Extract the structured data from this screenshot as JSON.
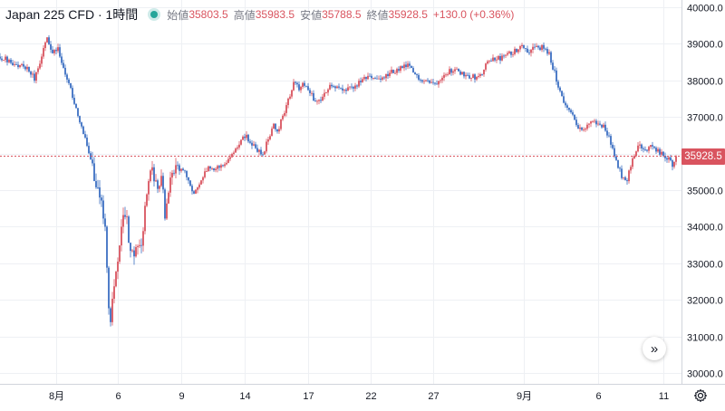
{
  "legend": {
    "title": "Japan 225 CFD · 1時間",
    "open_label": "始値",
    "open_value": "35803.5",
    "high_label": "高値",
    "high_value": "35983.5",
    "low_label": "安値",
    "low_value": "35788.5",
    "close_label": "終値",
    "close_value": "35928.5",
    "change": "+130.0 (+0.36%)"
  },
  "last_price_label": "35928.5",
  "colors": {
    "up": "#d9545f",
    "down": "#3c6fc2",
    "last_line": "#d9545f",
    "grid": "#eef0f4",
    "axis_text": "#131722"
  },
  "icons": {
    "scroll": "double-chevron-right-icon",
    "settings": "gear-icon"
  },
  "chart_data": {
    "type": "candlestick",
    "series_name": "Japan 225 CFD",
    "interval": "1時間",
    "y_ticks": [
      30000,
      31000,
      32000,
      33000,
      34000,
      35000,
      36000,
      37000,
      38000,
      39000,
      40000
    ],
    "y_tick_labels": [
      "30000.0",
      "31000.0",
      "32000.0",
      "33000.0",
      "34000.0",
      "35000.0",
      "36000.0",
      "37000.0",
      "38000.0",
      "39000.0",
      "40000.0"
    ],
    "ylim": [
      29700,
      40200
    ],
    "x_ticks": [
      {
        "label": "8月",
        "index": 62
      },
      {
        "label": "6",
        "index": 130
      },
      {
        "label": "9",
        "index": 200
      },
      {
        "label": "14",
        "index": 270
      },
      {
        "label": "17",
        "index": 340
      },
      {
        "label": "22",
        "index": 409
      },
      {
        "label": "27",
        "index": 478
      },
      {
        "label": "9月",
        "index": 578
      },
      {
        "label": "6",
        "index": 660
      },
      {
        "label": "11",
        "index": 732
      }
    ],
    "x_range": [
      0,
      752
    ],
    "candle_spacing_index": 2,
    "last_price": 35928.5,
    "path": [
      [
        0,
        38650
      ],
      [
        30,
        38300
      ],
      [
        38,
        38050
      ],
      [
        45,
        38600
      ],
      [
        52,
        39150
      ],
      [
        58,
        38700
      ],
      [
        64,
        38900
      ],
      [
        72,
        38150
      ],
      [
        80,
        37600
      ],
      [
        88,
        36850
      ],
      [
        95,
        36400
      ],
      [
        100,
        35800
      ],
      [
        106,
        35200
      ],
      [
        112,
        34600
      ],
      [
        116,
        33900
      ],
      [
        119,
        32500
      ],
      [
        121,
        31000
      ],
      [
        123,
        31700
      ],
      [
        127,
        32600
      ],
      [
        131,
        33300
      ],
      [
        135,
        34400
      ],
      [
        139,
        34300
      ],
      [
        143,
        33500
      ],
      [
        147,
        33100
      ],
      [
        151,
        33400
      ],
      [
        155,
        33300
      ],
      [
        159,
        34300
      ],
      [
        163,
        35200
      ],
      [
        166,
        35600
      ],
      [
        170,
        35300
      ],
      [
        174,
        34900
      ],
      [
        178,
        35400
      ],
      [
        182,
        34400
      ],
      [
        186,
        35000
      ],
      [
        190,
        35400
      ],
      [
        194,
        35700
      ],
      [
        200,
        35600
      ],
      [
        206,
        35400
      ],
      [
        212,
        34900
      ],
      [
        220,
        35200
      ],
      [
        230,
        35600
      ],
      [
        240,
        35600
      ],
      [
        250,
        35700
      ],
      [
        260,
        36100
      ],
      [
        270,
        36500
      ],
      [
        280,
        36200
      ],
      [
        290,
        36000
      ],
      [
        296,
        36400
      ],
      [
        302,
        36800
      ],
      [
        306,
        36600
      ],
      [
        312,
        37000
      ],
      [
        318,
        37500
      ],
      [
        324,
        37900
      ],
      [
        330,
        37800
      ],
      [
        336,
        37900
      ],
      [
        342,
        37700
      ],
      [
        348,
        37400
      ],
      [
        356,
        37500
      ],
      [
        364,
        37900
      ],
      [
        372,
        37800
      ],
      [
        380,
        37700
      ],
      [
        390,
        37800
      ],
      [
        400,
        38000
      ],
      [
        410,
        38100
      ],
      [
        420,
        38000
      ],
      [
        430,
        38200
      ],
      [
        440,
        38300
      ],
      [
        450,
        38400
      ],
      [
        460,
        38100
      ],
      [
        470,
        38000
      ],
      [
        480,
        37900
      ],
      [
        490,
        38200
      ],
      [
        500,
        38300
      ],
      [
        510,
        38200
      ],
      [
        520,
        38100
      ],
      [
        530,
        38100
      ],
      [
        536,
        38400
      ],
      [
        544,
        38600
      ],
      [
        552,
        38600
      ],
      [
        560,
        38700
      ],
      [
        568,
        38800
      ],
      [
        576,
        39000
      ],
      [
        582,
        38800
      ],
      [
        590,
        38900
      ],
      [
        598,
        38900
      ],
      [
        606,
        38700
      ],
      [
        612,
        38200
      ],
      [
        618,
        37700
      ],
      [
        624,
        37300
      ],
      [
        630,
        37100
      ],
      [
        636,
        36800
      ],
      [
        644,
        36600
      ],
      [
        652,
        36900
      ],
      [
        660,
        36800
      ],
      [
        668,
        36700
      ],
      [
        674,
        36300
      ],
      [
        680,
        35800
      ],
      [
        686,
        35400
      ],
      [
        692,
        35300
      ],
      [
        698,
        35900
      ],
      [
        704,
        36200
      ],
      [
        712,
        36100
      ],
      [
        720,
        36200
      ],
      [
        728,
        36000
      ],
      [
        736,
        35900
      ],
      [
        742,
        35700
      ],
      [
        746,
        35929
      ]
    ]
  }
}
